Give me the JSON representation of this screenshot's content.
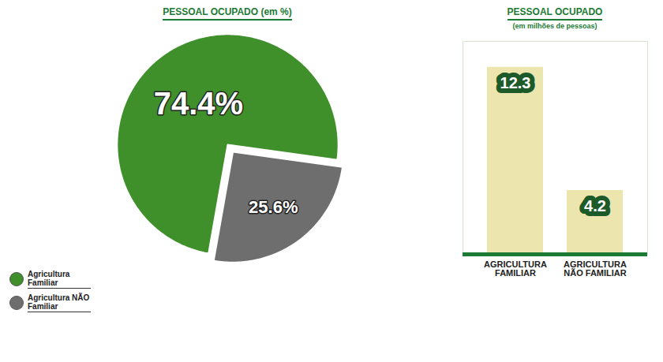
{
  "chart_data": [
    {
      "type": "pie",
      "title": "PESSOAL OCUPADO (em %)",
      "categories": [
        "Agricultura Familiar",
        "Agricultura NÃO Familiar"
      ],
      "values": [
        74.4,
        25.6
      ],
      "value_labels": [
        "74.4%",
        "25.6%"
      ],
      "colors": [
        "#3f8f2a",
        "#6e6e6e"
      ],
      "data_labels": true,
      "legend": "bottom-left"
    },
    {
      "type": "bar",
      "title": "PESSOAL OCUPADO",
      "subtitle": "(em milhões de pessoas)",
      "categories": [
        "AGRICULTURA FAMILIAR",
        "AGRICULTURA NÃO FAMILIAR"
      ],
      "values": [
        12.3,
        4.2
      ],
      "colors": [
        "#ece6ae",
        "#ece6ae"
      ],
      "ylim": [
        0,
        14
      ],
      "data_labels": true,
      "tick_labels": "x"
    }
  ]
}
